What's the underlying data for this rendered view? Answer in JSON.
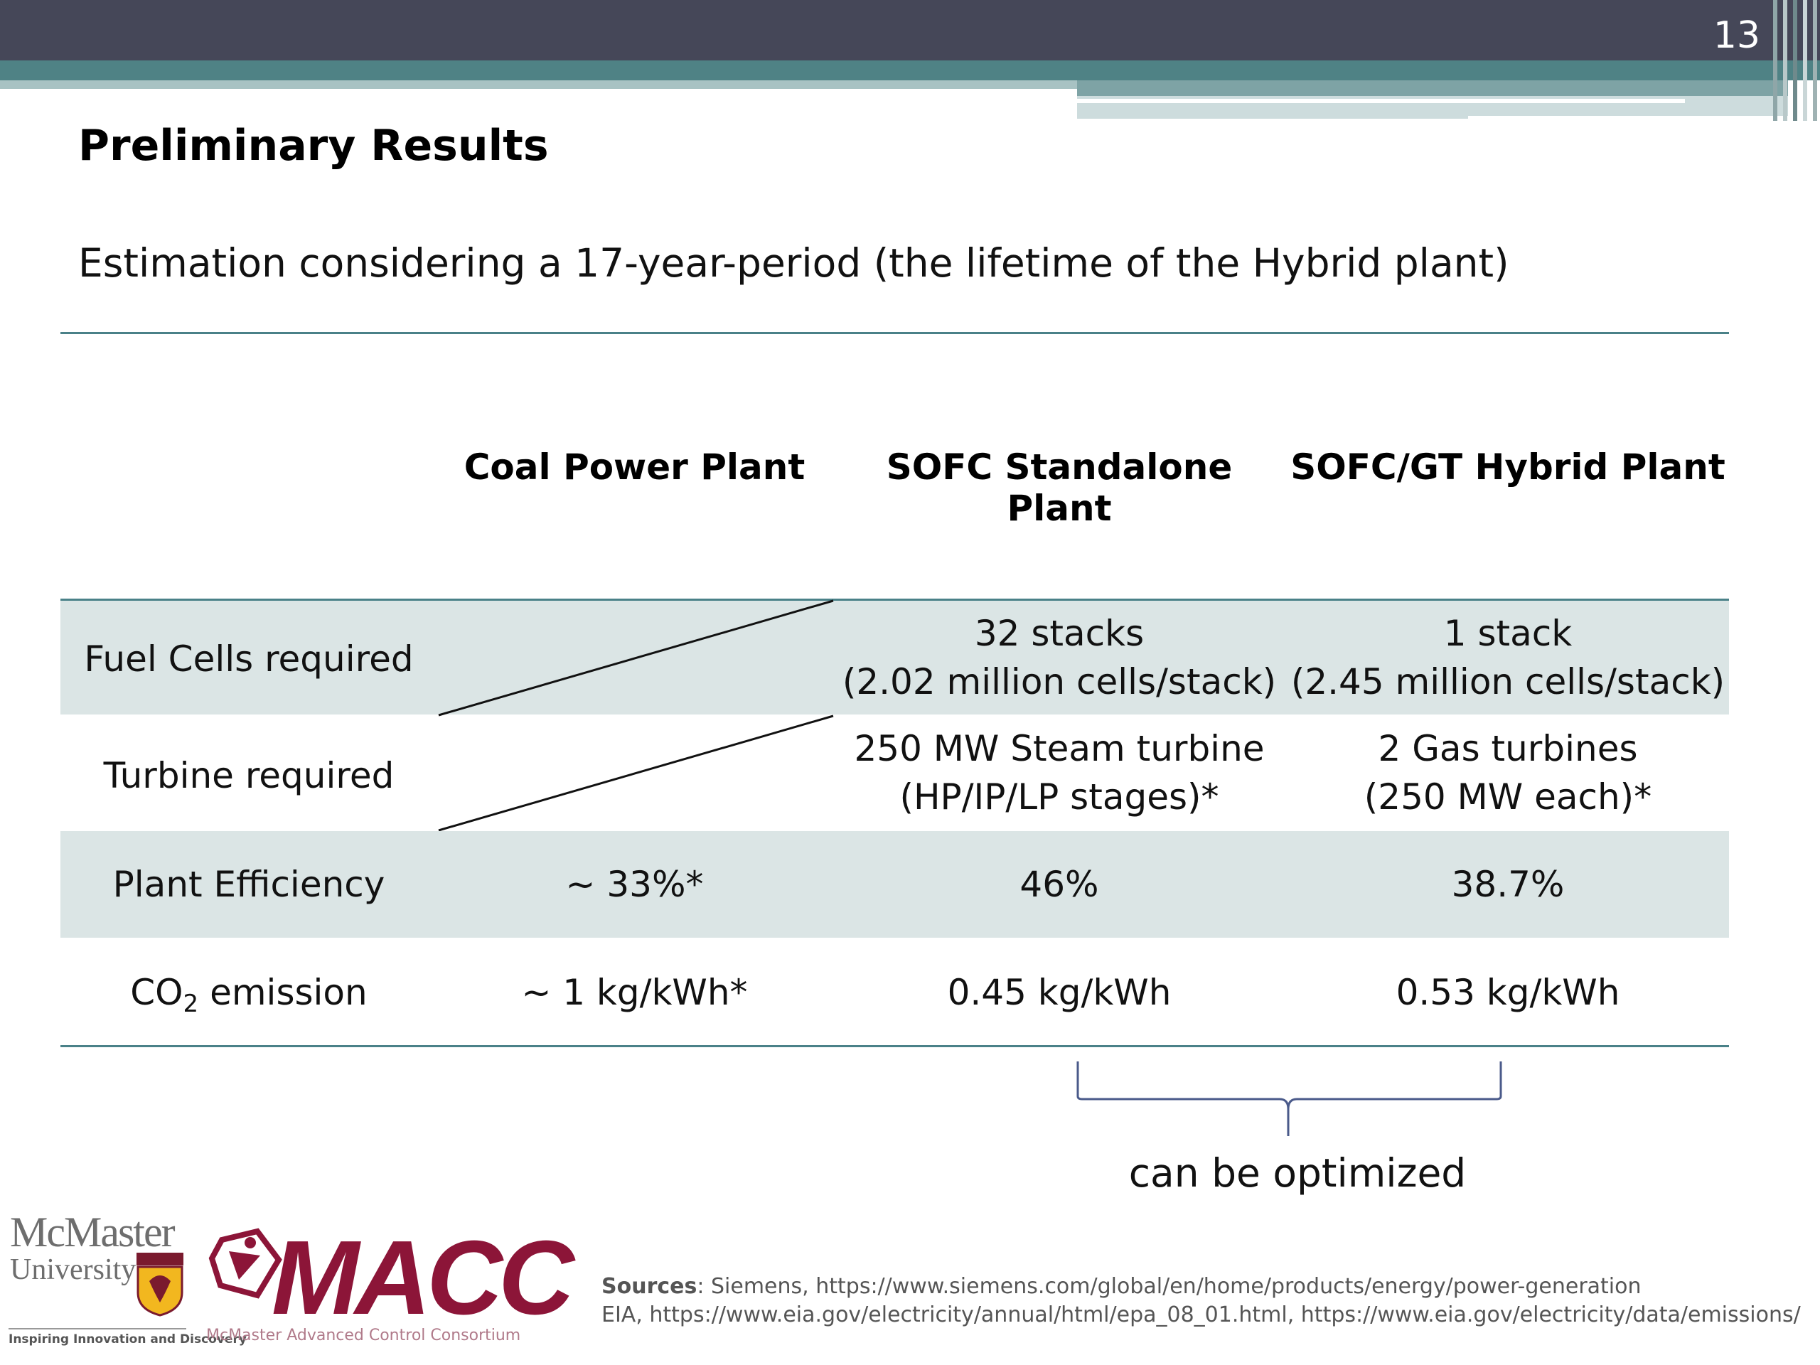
{
  "slide": {
    "page_number": "13",
    "title": "Preliminary Results",
    "subtitle": "Estimation considering a 17-year-period (the lifetime of the Hybrid plant)"
  },
  "table": {
    "columns": [
      "Coal Power Plant",
      "SOFC Standalone Plant",
      "SOFC/GT Hybrid Plant"
    ],
    "rows": {
      "fuel_cells": {
        "label": "Fuel Cells required",
        "coal": "",
        "sofc_line1": "32 stacks",
        "sofc_line2": "(2.02 million cells/stack)",
        "hybrid_line1": "1 stack",
        "hybrid_line2": "(2.45 million cells/stack)"
      },
      "turbine": {
        "label": "Turbine required",
        "coal": "",
        "sofc_line1": "250 MW Steam turbine",
        "sofc_line2": "(HP/IP/LP stages)*",
        "hybrid_line1": "2 Gas turbines",
        "hybrid_line2": "(250 MW each)*"
      },
      "efficiency": {
        "label": "Plant Efficiency",
        "coal": "~ 33%*",
        "sofc": "46%",
        "hybrid": "38.7%"
      },
      "co2": {
        "label_prefix": "CO",
        "label_sub": "2",
        "label_suffix": " emission",
        "coal": "~ 1 kg/kWh*",
        "sofc": "0.45 kg/kWh",
        "hybrid": "0.53 kg/kWh"
      }
    }
  },
  "annotation": "can be optimized",
  "sources": {
    "label": "Sources",
    "line1": ": Siemens, https://www.siemens.com/global/en/home/products/energy/power-generation",
    "line2": "EIA, https://www.eia.gov/electricity/annual/html/epa_08_01.html, https://www.eia.gov/electricity/data/emissions/"
  },
  "logos": {
    "mcmaster_name": "McMaster",
    "mcmaster_university": "University",
    "mcmaster_tagline": "Inspiring Innovation and Discovery",
    "macc_name": "MACC",
    "macc_full": "McMaster Advanced Control Consortium"
  },
  "colors": {
    "header_dark": "#454758",
    "header_teal": "#4f8285",
    "row_shade": "#dbe5e5",
    "rule": "#4a8188",
    "macc_red": "#8c1538"
  }
}
